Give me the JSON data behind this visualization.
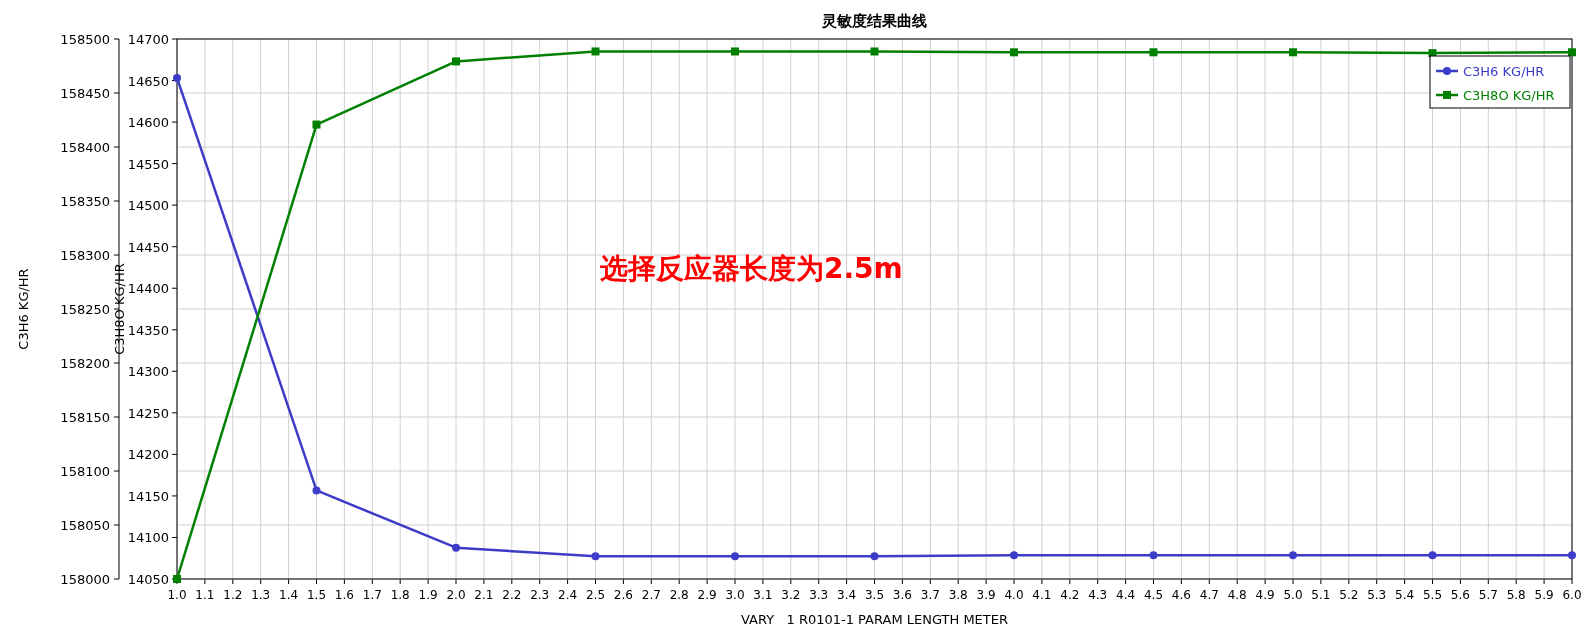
{
  "chart_data": {
    "type": "line",
    "title": "灵敏度结果曲线",
    "xlabel": "VARY   1 R0101-1 PARAM LENGTH METER",
    "ylabel": "C3H6 KG/HR",
    "y2label": "C3H8O KG/HR",
    "annotations": [
      "选择反应器长度为2.5m"
    ],
    "x": [
      1.0,
      1.5,
      2.0,
      2.5,
      3.0,
      3.5,
      4.0,
      4.5,
      5.0,
      5.5,
      6.0
    ],
    "series": [
      {
        "name": "C3H6 KG/HR",
        "color": "#3c3cc8",
        "marker": "circle",
        "values": [
          158464,
          158082,
          158029,
          158021,
          158021,
          158021,
          158022,
          158022,
          158022,
          158022,
          158022
        ]
      },
      {
        "name": "C3H8O KG/HR",
        "color": "#008000",
        "marker": "square",
        "axis": "y2",
        "values": [
          14050,
          14597,
          14673,
          14685,
          14685,
          14685,
          14684,
          14684,
          14684,
          14683,
          14684
        ]
      }
    ],
    "xlim": [
      1.0,
      6.0
    ],
    "xticks": [
      {
        "value": 1.0,
        "label": "1.0"
      },
      {
        "value": 1.1,
        "label": "1.1"
      },
      {
        "value": 1.2,
        "label": "1.2"
      },
      {
        "value": 1.3,
        "label": "1.3"
      },
      {
        "value": 1.4,
        "label": "1.4"
      },
      {
        "value": 1.5,
        "label": "1.5"
      },
      {
        "value": 1.6,
        "label": "1.6"
      },
      {
        "value": 1.7,
        "label": "1.7"
      },
      {
        "value": 1.8,
        "label": "1.8"
      },
      {
        "value": 1.9,
        "label": "1.9"
      },
      {
        "value": 2.0,
        "label": "2.0"
      },
      {
        "value": 2.1,
        "label": "2.1"
      },
      {
        "value": 2.2,
        "label": "2.2"
      },
      {
        "value": 2.3,
        "label": "2.3"
      },
      {
        "value": 2.4,
        "label": "2.4"
      },
      {
        "value": 2.5,
        "label": "2.5"
      },
      {
        "value": 2.6,
        "label": "2.6"
      },
      {
        "value": 2.7,
        "label": "2.7"
      },
      {
        "value": 2.8,
        "label": "2.8"
      },
      {
        "value": 2.9,
        "label": "2.9"
      },
      {
        "value": 3.0,
        "label": "3.0"
      },
      {
        "value": 3.1,
        "label": "3.1"
      },
      {
        "value": 3.2,
        "label": "3.2"
      },
      {
        "value": 3.3,
        "label": "3.3"
      },
      {
        "value": 3.4,
        "label": "3.4"
      },
      {
        "value": 3.5,
        "label": "3.5"
      },
      {
        "value": 3.6,
        "label": "3.6"
      },
      {
        "value": 3.7,
        "label": "3.7"
      },
      {
        "value": 3.8,
        "label": "3.8"
      },
      {
        "value": 3.9,
        "label": "3.9"
      },
      {
        "value": 4.0,
        "label": "4.0"
      },
      {
        "value": 4.1,
        "label": "4.1"
      },
      {
        "value": 4.2,
        "label": "4.2"
      },
      {
        "value": 4.3,
        "label": "4.3"
      },
      {
        "value": 4.4,
        "label": "4.4"
      },
      {
        "value": 4.5,
        "label": "4.5"
      },
      {
        "value": 4.6,
        "label": "4.6"
      },
      {
        "value": 4.7,
        "label": "4.7"
      },
      {
        "value": 4.8,
        "label": "4.8"
      },
      {
        "value": 4.9,
        "label": "4.9"
      },
      {
        "value": 5.0,
        "label": "5.0"
      },
      {
        "value": 5.1,
        "label": "5.1"
      },
      {
        "value": 5.2,
        "label": "5.2"
      },
      {
        "value": 5.3,
        "label": "5.3"
      },
      {
        "value": 5.4,
        "label": "5.4"
      },
      {
        "value": 5.5,
        "label": "5.5"
      },
      {
        "value": 5.6,
        "label": "5.6"
      },
      {
        "value": 5.7,
        "label": "5.7"
      },
      {
        "value": 5.8,
        "label": "5.8"
      },
      {
        "value": 5.9,
        "label": "5.9"
      },
      {
        "value": 6.0,
        "label": "6.0"
      }
    ],
    "ylim": [
      158000,
      158500
    ],
    "yticks": [
      158000,
      158050,
      158100,
      158150,
      158200,
      158250,
      158300,
      158350,
      158400,
      158450,
      158500
    ],
    "y2lim": [
      14050,
      14700
    ],
    "y2ticks": [
      14050,
      14100,
      14150,
      14200,
      14250,
      14300,
      14350,
      14400,
      14450,
      14500,
      14550,
      14600,
      14650,
      14700
    ],
    "grid": true,
    "legend": "top right",
    "line_style": "solid"
  }
}
